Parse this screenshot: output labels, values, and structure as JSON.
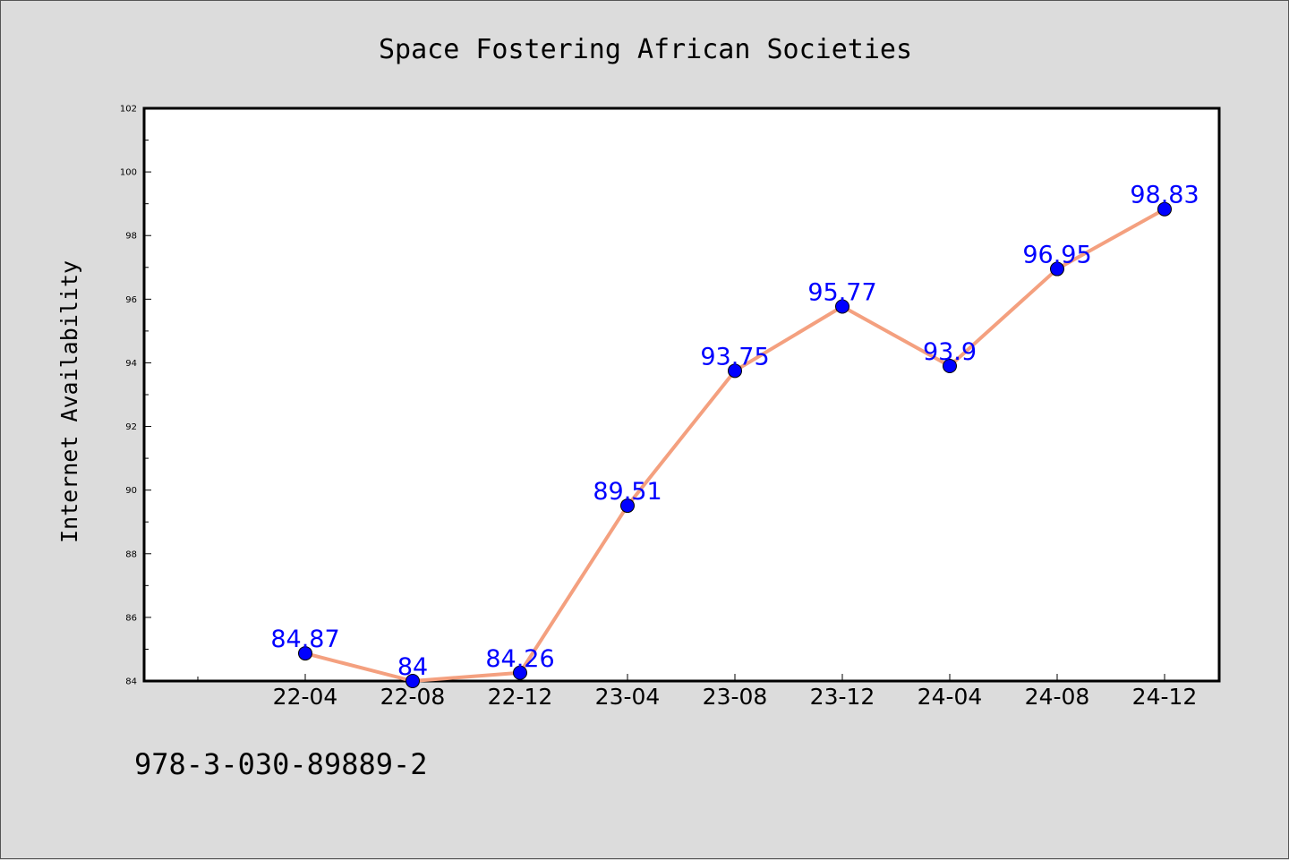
{
  "chart_data": {
    "type": "line",
    "title": "Space Fostering African Societies",
    "xlabel": "",
    "ylabel": "Internet Availability",
    "categories": [
      "22-04",
      "22-08",
      "22-12",
      "23-04",
      "23-08",
      "23-12",
      "24-04",
      "24-08",
      "24-12"
    ],
    "series": [
      {
        "values": [
          84.87,
          84,
          84.26,
          89.51,
          93.75,
          95.77,
          93.9,
          96.95,
          98.83
        ],
        "line_color": "#f4a07f",
        "marker_color": "#0000ff"
      }
    ],
    "data_labels": [
      "84.87",
      "84",
      "84.26",
      "89.51",
      "93.75",
      "95.77",
      "93.9",
      "96.95",
      "98.83"
    ],
    "ylim": [
      84,
      102
    ],
    "yticks": [
      84,
      86,
      88,
      90,
      92,
      94,
      96,
      98,
      100,
      102
    ],
    "ytick_labels": [
      "84",
      "86",
      "88",
      "90",
      "92",
      "94",
      "96",
      "98",
      "100",
      "102"
    ],
    "grid": false,
    "legend": "none"
  },
  "footnote": "978-3-030-89889-2",
  "colors": {
    "background": "#dcdcdc",
    "plot_area": "#ffffff",
    "line": "#f4a07f",
    "marker": "#0000ff",
    "data_label": "#0000ff"
  }
}
